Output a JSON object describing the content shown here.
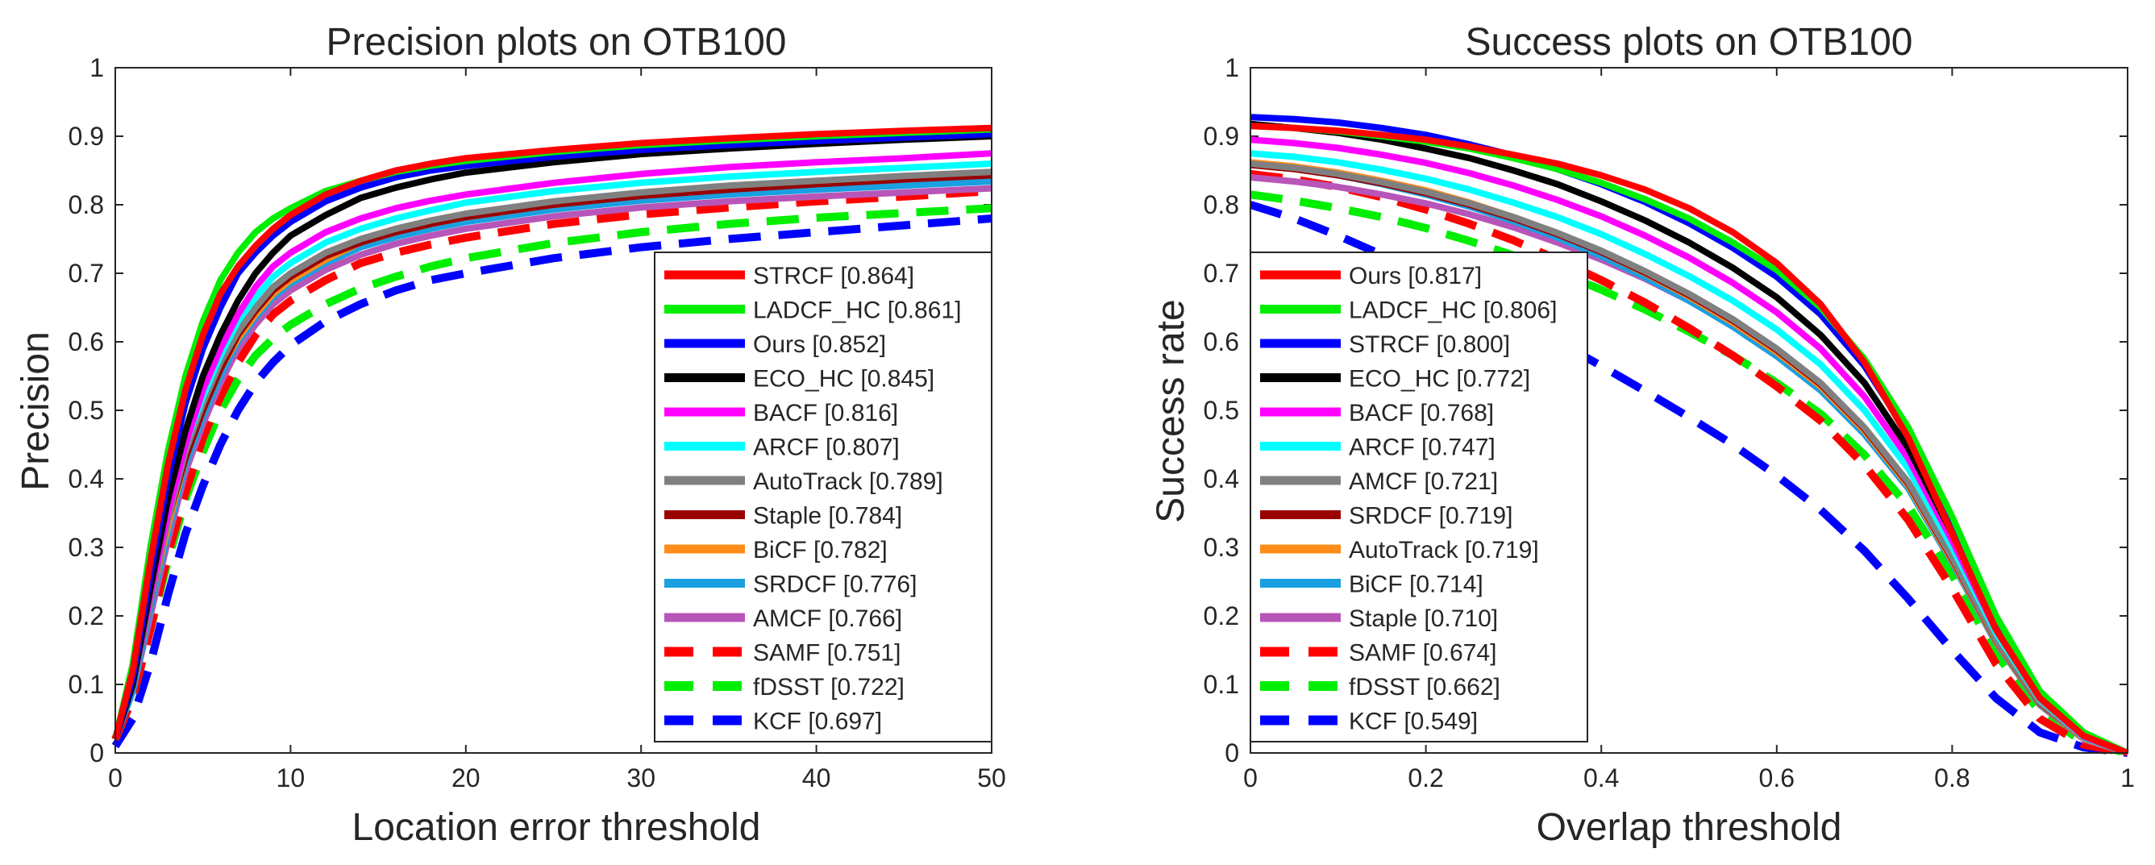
{
  "chart_data": [
    {
      "type": "line",
      "title": "Precision plots on OTB100",
      "xlabel": "Location error threshold",
      "ylabel": "Precision",
      "xlim": [
        0,
        50
      ],
      "ylim": [
        0,
        1
      ],
      "xticks": [
        "0",
        "10",
        "20",
        "30",
        "40",
        "50"
      ],
      "yticks": [
        "0",
        "0.1",
        "0.2",
        "0.3",
        "0.4",
        "0.5",
        "0.6",
        "0.7",
        "0.8",
        "0.9",
        "1"
      ],
      "legend_position": "bottom-right",
      "x": [
        0,
        1,
        2,
        3,
        4,
        5,
        6,
        7,
        8,
        9,
        10,
        12,
        14,
        16,
        18,
        20,
        25,
        30,
        35,
        40,
        45,
        50
      ],
      "series": [
        {
          "name": "STRCF [0.864]",
          "color": "#ff0000",
          "dash": "solid",
          "values": [
            0.02,
            0.12,
            0.28,
            0.42,
            0.53,
            0.61,
            0.67,
            0.71,
            0.74,
            0.765,
            0.785,
            0.815,
            0.835,
            0.85,
            0.86,
            0.868,
            0.88,
            0.89,
            0.897,
            0.903,
            0.908,
            0.912
          ]
        },
        {
          "name": "LADCF_HC [0.861]",
          "color": "#00ee00",
          "dash": "solid",
          "values": [
            0.02,
            0.13,
            0.3,
            0.44,
            0.55,
            0.63,
            0.69,
            0.73,
            0.76,
            0.78,
            0.795,
            0.82,
            0.835,
            0.848,
            0.857,
            0.864,
            0.877,
            0.887,
            0.894,
            0.9,
            0.905,
            0.91
          ]
        },
        {
          "name": "Ours [0.852]",
          "color": "#0000ff",
          "dash": "solid",
          "values": [
            0.02,
            0.11,
            0.26,
            0.4,
            0.51,
            0.59,
            0.65,
            0.7,
            0.73,
            0.755,
            0.775,
            0.805,
            0.825,
            0.84,
            0.85,
            0.857,
            0.87,
            0.88,
            0.887,
            0.893,
            0.898,
            0.903
          ]
        },
        {
          "name": "ECO_HC [0.845]",
          "color": "#000000",
          "dash": "solid",
          "values": [
            0.02,
            0.1,
            0.24,
            0.37,
            0.47,
            0.55,
            0.61,
            0.66,
            0.7,
            0.73,
            0.755,
            0.785,
            0.81,
            0.825,
            0.837,
            0.847,
            0.862,
            0.874,
            0.882,
            0.889,
            0.895,
            0.9
          ]
        },
        {
          "name": "BACF [0.816]",
          "color": "#ff00ff",
          "dash": "solid",
          "values": [
            0.02,
            0.1,
            0.23,
            0.35,
            0.45,
            0.53,
            0.59,
            0.64,
            0.68,
            0.71,
            0.73,
            0.76,
            0.78,
            0.795,
            0.806,
            0.815,
            0.832,
            0.845,
            0.855,
            0.862,
            0.868,
            0.875
          ]
        },
        {
          "name": "ARCF [0.807]",
          "color": "#00ffff",
          "dash": "solid",
          "values": [
            0.02,
            0.1,
            0.23,
            0.35,
            0.45,
            0.52,
            0.58,
            0.63,
            0.665,
            0.695,
            0.715,
            0.745,
            0.765,
            0.78,
            0.792,
            0.803,
            0.82,
            0.832,
            0.841,
            0.848,
            0.854,
            0.86
          ]
        },
        {
          "name": "AutoTrack [0.789]",
          "color": "#808080",
          "dash": "solid",
          "values": [
            0.02,
            0.1,
            0.22,
            0.34,
            0.44,
            0.51,
            0.57,
            0.615,
            0.65,
            0.68,
            0.7,
            0.73,
            0.75,
            0.765,
            0.777,
            0.787,
            0.805,
            0.818,
            0.828,
            0.835,
            0.842,
            0.848
          ]
        },
        {
          "name": "Staple [0.784]",
          "color": "#990000",
          "dash": "solid",
          "values": [
            0.02,
            0.1,
            0.22,
            0.34,
            0.43,
            0.5,
            0.56,
            0.61,
            0.645,
            0.675,
            0.695,
            0.725,
            0.745,
            0.76,
            0.772,
            0.782,
            0.8,
            0.813,
            0.822,
            0.83,
            0.837,
            0.843
          ]
        },
        {
          "name": "BiCF [0.782]",
          "color": "#ff8c1a",
          "dash": "solid",
          "values": [
            0.02,
            0.1,
            0.22,
            0.33,
            0.43,
            0.5,
            0.56,
            0.605,
            0.64,
            0.67,
            0.69,
            0.72,
            0.745,
            0.76,
            0.772,
            0.782,
            0.8,
            0.815,
            0.825,
            0.833,
            0.84,
            0.847
          ]
        },
        {
          "name": "SRDCF [0.776]",
          "color": "#1a9fe0",
          "dash": "solid",
          "values": [
            0.02,
            0.09,
            0.21,
            0.32,
            0.42,
            0.49,
            0.55,
            0.6,
            0.635,
            0.665,
            0.685,
            0.715,
            0.738,
            0.753,
            0.765,
            0.775,
            0.793,
            0.806,
            0.815,
            0.822,
            0.828,
            0.834
          ]
        },
        {
          "name": "AMCF [0.766]",
          "color": "#b855b8",
          "dash": "solid",
          "values": [
            0.02,
            0.09,
            0.2,
            0.31,
            0.41,
            0.48,
            0.54,
            0.59,
            0.625,
            0.655,
            0.675,
            0.705,
            0.727,
            0.743,
            0.755,
            0.765,
            0.783,
            0.796,
            0.805,
            0.812,
            0.818,
            0.824
          ]
        },
        {
          "name": "SAMF [0.751]",
          "color": "#ff0000",
          "dash": "dashed",
          "values": [
            0.02,
            0.08,
            0.18,
            0.29,
            0.38,
            0.46,
            0.52,
            0.57,
            0.61,
            0.64,
            0.66,
            0.69,
            0.715,
            0.73,
            0.742,
            0.752,
            0.772,
            0.786,
            0.796,
            0.805,
            0.812,
            0.82
          ]
        },
        {
          "name": "fDSST [0.722]",
          "color": "#00ee00",
          "dash": "dashed",
          "values": [
            0.02,
            0.08,
            0.18,
            0.28,
            0.37,
            0.44,
            0.5,
            0.545,
            0.58,
            0.605,
            0.625,
            0.655,
            0.678,
            0.695,
            0.71,
            0.722,
            0.744,
            0.76,
            0.772,
            0.781,
            0.788,
            0.795
          ]
        },
        {
          "name": "KCF [0.697]",
          "color": "#0000ff",
          "dash": "dashed",
          "values": [
            0.01,
            0.05,
            0.13,
            0.23,
            0.32,
            0.39,
            0.45,
            0.5,
            0.54,
            0.57,
            0.595,
            0.63,
            0.655,
            0.675,
            0.69,
            0.7,
            0.722,
            0.738,
            0.75,
            0.76,
            0.77,
            0.78
          ]
        }
      ]
    },
    {
      "type": "line",
      "title": "Success plots on OTB100",
      "xlabel": "Overlap threshold",
      "ylabel": "Success rate",
      "xlim": [
        0,
        1
      ],
      "ylim": [
        0,
        1
      ],
      "xticks": [
        "0",
        "0.2",
        "0.4",
        "0.6",
        "0.8",
        "1"
      ],
      "yticks": [
        "0",
        "0.1",
        "0.2",
        "0.3",
        "0.4",
        "0.5",
        "0.6",
        "0.7",
        "0.8",
        "0.9",
        "1"
      ],
      "legend_position": "bottom-left",
      "x": [
        0,
        0.05,
        0.1,
        0.15,
        0.2,
        0.25,
        0.3,
        0.35,
        0.4,
        0.45,
        0.5,
        0.55,
        0.6,
        0.65,
        0.7,
        0.75,
        0.8,
        0.85,
        0.9,
        0.95,
        1
      ],
      "series": [
        {
          "name": "Ours [0.817]",
          "color": "#ff0000",
          "dash": "solid",
          "values": [
            0.915,
            0.912,
            0.908,
            0.902,
            0.895,
            0.885,
            0.873,
            0.86,
            0.843,
            0.822,
            0.795,
            0.76,
            0.715,
            0.655,
            0.57,
            0.46,
            0.32,
            0.18,
            0.08,
            0.025,
            0.0
          ]
        },
        {
          "name": "LADCF_HC [0.806]",
          "color": "#00ee00",
          "dash": "solid",
          "values": [
            0.915,
            0.912,
            0.907,
            0.9,
            0.892,
            0.882,
            0.868,
            0.852,
            0.832,
            0.808,
            0.78,
            0.745,
            0.705,
            0.65,
            0.575,
            0.475,
            0.345,
            0.2,
            0.09,
            0.03,
            0.0
          ]
        },
        {
          "name": "STRCF [0.800]",
          "color": "#0000ff",
          "dash": "solid",
          "values": [
            0.928,
            0.925,
            0.92,
            0.912,
            0.902,
            0.888,
            0.872,
            0.852,
            0.83,
            0.804,
            0.773,
            0.737,
            0.695,
            0.64,
            0.565,
            0.465,
            0.335,
            0.195,
            0.09,
            0.028,
            0.0
          ]
        },
        {
          "name": "ECO_HC [0.772]",
          "color": "#000000",
          "dash": "solid",
          "values": [
            0.918,
            0.912,
            0.905,
            0.895,
            0.882,
            0.868,
            0.85,
            0.83,
            0.805,
            0.777,
            0.745,
            0.708,
            0.665,
            0.61,
            0.54,
            0.445,
            0.32,
            0.185,
            0.085,
            0.025,
            0.0
          ]
        },
        {
          "name": "BACF [0.768]",
          "color": "#ff00ff",
          "dash": "solid",
          "values": [
            0.895,
            0.89,
            0.883,
            0.873,
            0.861,
            0.846,
            0.828,
            0.807,
            0.783,
            0.755,
            0.723,
            0.686,
            0.643,
            0.59,
            0.52,
            0.43,
            0.31,
            0.18,
            0.08,
            0.024,
            0.0
          ]
        },
        {
          "name": "ARCF [0.747]",
          "color": "#00ffff",
          "dash": "solid",
          "values": [
            0.875,
            0.87,
            0.862,
            0.851,
            0.838,
            0.822,
            0.803,
            0.782,
            0.757,
            0.728,
            0.696,
            0.66,
            0.618,
            0.567,
            0.5,
            0.415,
            0.3,
            0.175,
            0.078,
            0.023,
            0.0
          ]
        },
        {
          "name": "AMCF [0.721]",
          "color": "#808080",
          "dash": "solid",
          "values": [
            0.86,
            0.854,
            0.845,
            0.833,
            0.819,
            0.802,
            0.782,
            0.759,
            0.733,
            0.703,
            0.67,
            0.633,
            0.59,
            0.54,
            0.475,
            0.395,
            0.285,
            0.165,
            0.074,
            0.022,
            0.0
          ]
        },
        {
          "name": "SRDCF [0.719]",
          "color": "#990000",
          "dash": "solid",
          "values": [
            0.858,
            0.852,
            0.843,
            0.831,
            0.817,
            0.8,
            0.78,
            0.757,
            0.731,
            0.701,
            0.668,
            0.631,
            0.588,
            0.538,
            0.473,
            0.393,
            0.283,
            0.164,
            0.073,
            0.022,
            0.0
          ]
        },
        {
          "name": "AutoTrack [0.719]",
          "color": "#ff8c1a",
          "dash": "solid",
          "values": [
            0.862,
            0.856,
            0.847,
            0.835,
            0.821,
            0.803,
            0.782,
            0.758,
            0.731,
            0.7,
            0.666,
            0.628,
            0.585,
            0.535,
            0.47,
            0.39,
            0.28,
            0.162,
            0.072,
            0.021,
            0.0
          ]
        },
        {
          "name": "BiCF [0.714]",
          "color": "#1a9fe0",
          "dash": "solid",
          "values": [
            0.86,
            0.853,
            0.843,
            0.83,
            0.815,
            0.797,
            0.776,
            0.752,
            0.725,
            0.694,
            0.66,
            0.622,
            0.579,
            0.529,
            0.465,
            0.386,
            0.277,
            0.16,
            0.071,
            0.021,
            0.0
          ]
        },
        {
          "name": "Staple [0.710]",
          "color": "#b855b8",
          "dash": "solid",
          "values": [
            0.84,
            0.834,
            0.826,
            0.815,
            0.802,
            0.786,
            0.767,
            0.745,
            0.72,
            0.692,
            0.66,
            0.624,
            0.583,
            0.535,
            0.472,
            0.392,
            0.28,
            0.16,
            0.07,
            0.02,
            0.0
          ]
        },
        {
          "name": "SAMF [0.674]",
          "color": "#ff0000",
          "dash": "dashed",
          "values": [
            0.845,
            0.837,
            0.826,
            0.811,
            0.793,
            0.772,
            0.748,
            0.72,
            0.69,
            0.657,
            0.62,
            0.58,
            0.535,
            0.485,
            0.42,
            0.34,
            0.24,
            0.13,
            0.05,
            0.012,
            0.0
          ]
        },
        {
          "name": "fDSST [0.662]",
          "color": "#00ee00",
          "dash": "dashed",
          "values": [
            0.815,
            0.806,
            0.795,
            0.782,
            0.766,
            0.747,
            0.726,
            0.702,
            0.676,
            0.647,
            0.615,
            0.58,
            0.54,
            0.495,
            0.435,
            0.36,
            0.26,
            0.145,
            0.06,
            0.015,
            0.0
          ]
        },
        {
          "name": "KCF [0.549]",
          "color": "#0000ff",
          "dash": "dashed",
          "values": [
            0.8,
            0.78,
            0.755,
            0.727,
            0.698,
            0.667,
            0.634,
            0.6,
            0.565,
            0.528,
            0.49,
            0.45,
            0.405,
            0.355,
            0.295,
            0.225,
            0.15,
            0.08,
            0.03,
            0.008,
            0.0
          ]
        }
      ]
    }
  ]
}
